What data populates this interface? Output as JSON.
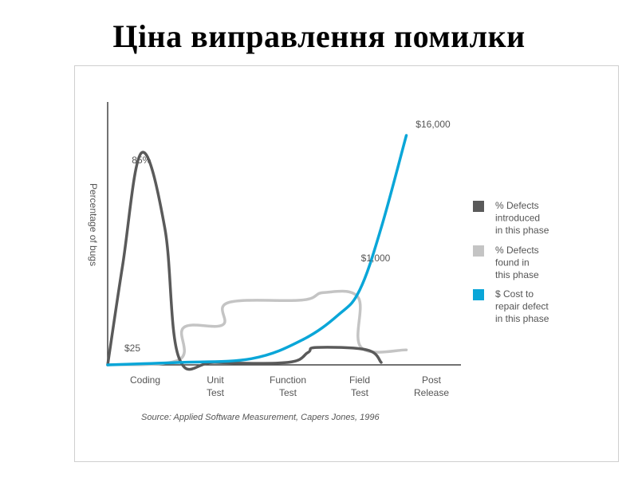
{
  "slide": {
    "title": "Ціна виправлення помилки"
  },
  "chart_data": {
    "type": "line",
    "ylabel": "Percentage of bugs",
    "xlabel": "",
    "categories": [
      [
        "Coding"
      ],
      [
        "Unit",
        "Test"
      ],
      [
        "Function",
        "Test"
      ],
      [
        "Field",
        "Test"
      ],
      [
        "Post",
        "Release"
      ]
    ],
    "series": [
      {
        "name": [
          "% Defects",
          "introduced",
          "in this phase"
        ],
        "color": "#5a5a5a",
        "shape": [
          [
            0.0,
            0
          ],
          [
            0.2,
            40
          ],
          [
            0.45,
            85
          ],
          [
            0.78,
            55
          ],
          [
            0.98,
            3
          ],
          [
            1.5,
            1
          ],
          [
            2.5,
            1
          ],
          [
            2.78,
            5
          ],
          [
            2.9,
            7
          ],
          [
            3.6,
            6
          ],
          [
            3.8,
            1
          ]
        ]
      },
      {
        "name": [
          "% Defects",
          "found in",
          "this phase"
        ],
        "color": "#c4c4c4",
        "shape": [
          [
            0.0,
            0
          ],
          [
            0.98,
            2
          ],
          [
            1.05,
            15
          ],
          [
            1.6,
            16
          ],
          [
            1.68,
            25
          ],
          [
            2.7,
            26
          ],
          [
            3.0,
            29
          ],
          [
            3.48,
            27
          ],
          [
            3.52,
            7
          ],
          [
            4.15,
            6
          ]
        ]
      },
      {
        "name": [
          "$ Cost to",
          "repair defect",
          "in this phase"
        ],
        "color": "#0aa6d8",
        "shape": [
          [
            0.0,
            0
          ],
          [
            1.0,
            1
          ],
          [
            2.0,
            2.5
          ],
          [
            2.7,
            10
          ],
          [
            3.2,
            20
          ],
          [
            3.5,
            30
          ],
          [
            3.8,
            55
          ],
          [
            4.15,
            92
          ]
        ]
      }
    ],
    "annotations": {
      "peak_introduced": "85%",
      "cost_start": "$25",
      "cost_field": "$1,000",
      "cost_post": "$16,000"
    },
    "source": "Source: Applied Software Measurement, Capers Jones, 1996",
    "legend_position": "right",
    "grid": false
  }
}
